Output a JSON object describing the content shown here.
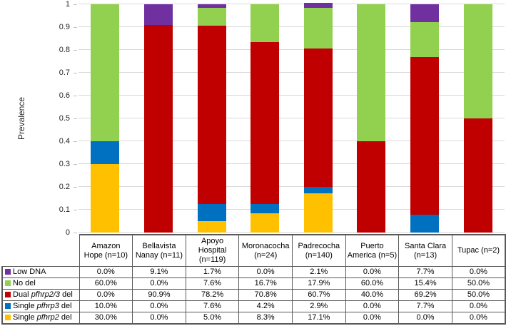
{
  "chart_data": {
    "type": "bar",
    "stacked": true,
    "title": "",
    "ylabel": "Prevalence",
    "ylim": [
      0,
      1
    ],
    "yticks": [
      "0",
      "0.1",
      "0.2",
      "0.3",
      "0.4",
      "0.5",
      "0.6",
      "0.7",
      "0.8",
      "0.9",
      "1"
    ],
    "grid": true,
    "legend_position": "table-left-keys",
    "value_unit": "%",
    "categories": [
      "Amazon Hope (n=10)",
      "Bellavista Nanay (n=11)",
      "Apoyo Hospital (n=119)",
      "Moronacocha (n=24)",
      "Padrecocha (n=140)",
      "Puerto America (n=5)",
      "Santa Clara (n=13)",
      "Tupac (n=2)"
    ],
    "series": [
      {
        "name": "Single pfhrp2 del",
        "label_parts": [
          "Single ",
          "pfhrp2",
          " del"
        ],
        "color": "#FFC000",
        "values": [
          30.0,
          0.0,
          5.0,
          8.3,
          17.1,
          0.0,
          0.0,
          0.0
        ]
      },
      {
        "name": "Single pfhrp3 del",
        "label_parts": [
          "Single ",
          "pfhrp3",
          " del"
        ],
        "color": "#0070C0",
        "values": [
          10.0,
          0.0,
          7.6,
          4.2,
          2.9,
          0.0,
          7.7,
          0.0
        ]
      },
      {
        "name": "Dual pfhrp2/3 del",
        "label_parts": [
          "Dual ",
          "pfhrp2/3",
          " del"
        ],
        "color": "#C00000",
        "values": [
          0.0,
          90.9,
          78.2,
          70.8,
          60.7,
          40.0,
          69.2,
          50.0
        ]
      },
      {
        "name": "No del",
        "label_parts": [
          "No del",
          "",
          ""
        ],
        "color": "#92D050",
        "values": [
          60.0,
          0.0,
          7.6,
          16.7,
          17.9,
          60.0,
          15.4,
          50.0
        ]
      },
      {
        "name": "Low DNA",
        "label_parts": [
          "Low DNA",
          "",
          ""
        ],
        "color": "#7030A0",
        "values": [
          0.0,
          9.1,
          1.7,
          0.0,
          2.1,
          0.0,
          7.7,
          0.0
        ]
      }
    ],
    "colors": {
      "gridline": "#D9D9D9",
      "tick": "#BFBFBF",
      "table_border": "#595959",
      "text": "#000000"
    }
  }
}
